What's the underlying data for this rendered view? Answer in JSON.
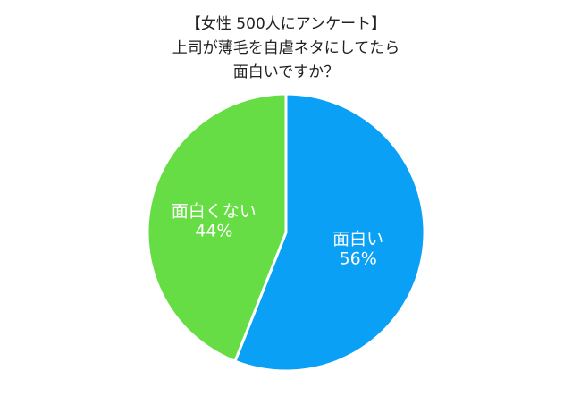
{
  "chart_data": {
    "type": "pie",
    "title_lines": [
      "【女性 500人にアンケート】",
      "上司が薄毛を自虐ネタにしてたら",
      "面白いですか？"
    ],
    "slices": [
      {
        "label": "面白い",
        "value": 56,
        "value_label": "56%",
        "color": "#0aa0f5"
      },
      {
        "label": "面白くない",
        "value": 44,
        "value_label": "44%",
        "color": "#66dd44"
      }
    ],
    "start": "top",
    "direction": "clockwise",
    "legend": "none"
  }
}
